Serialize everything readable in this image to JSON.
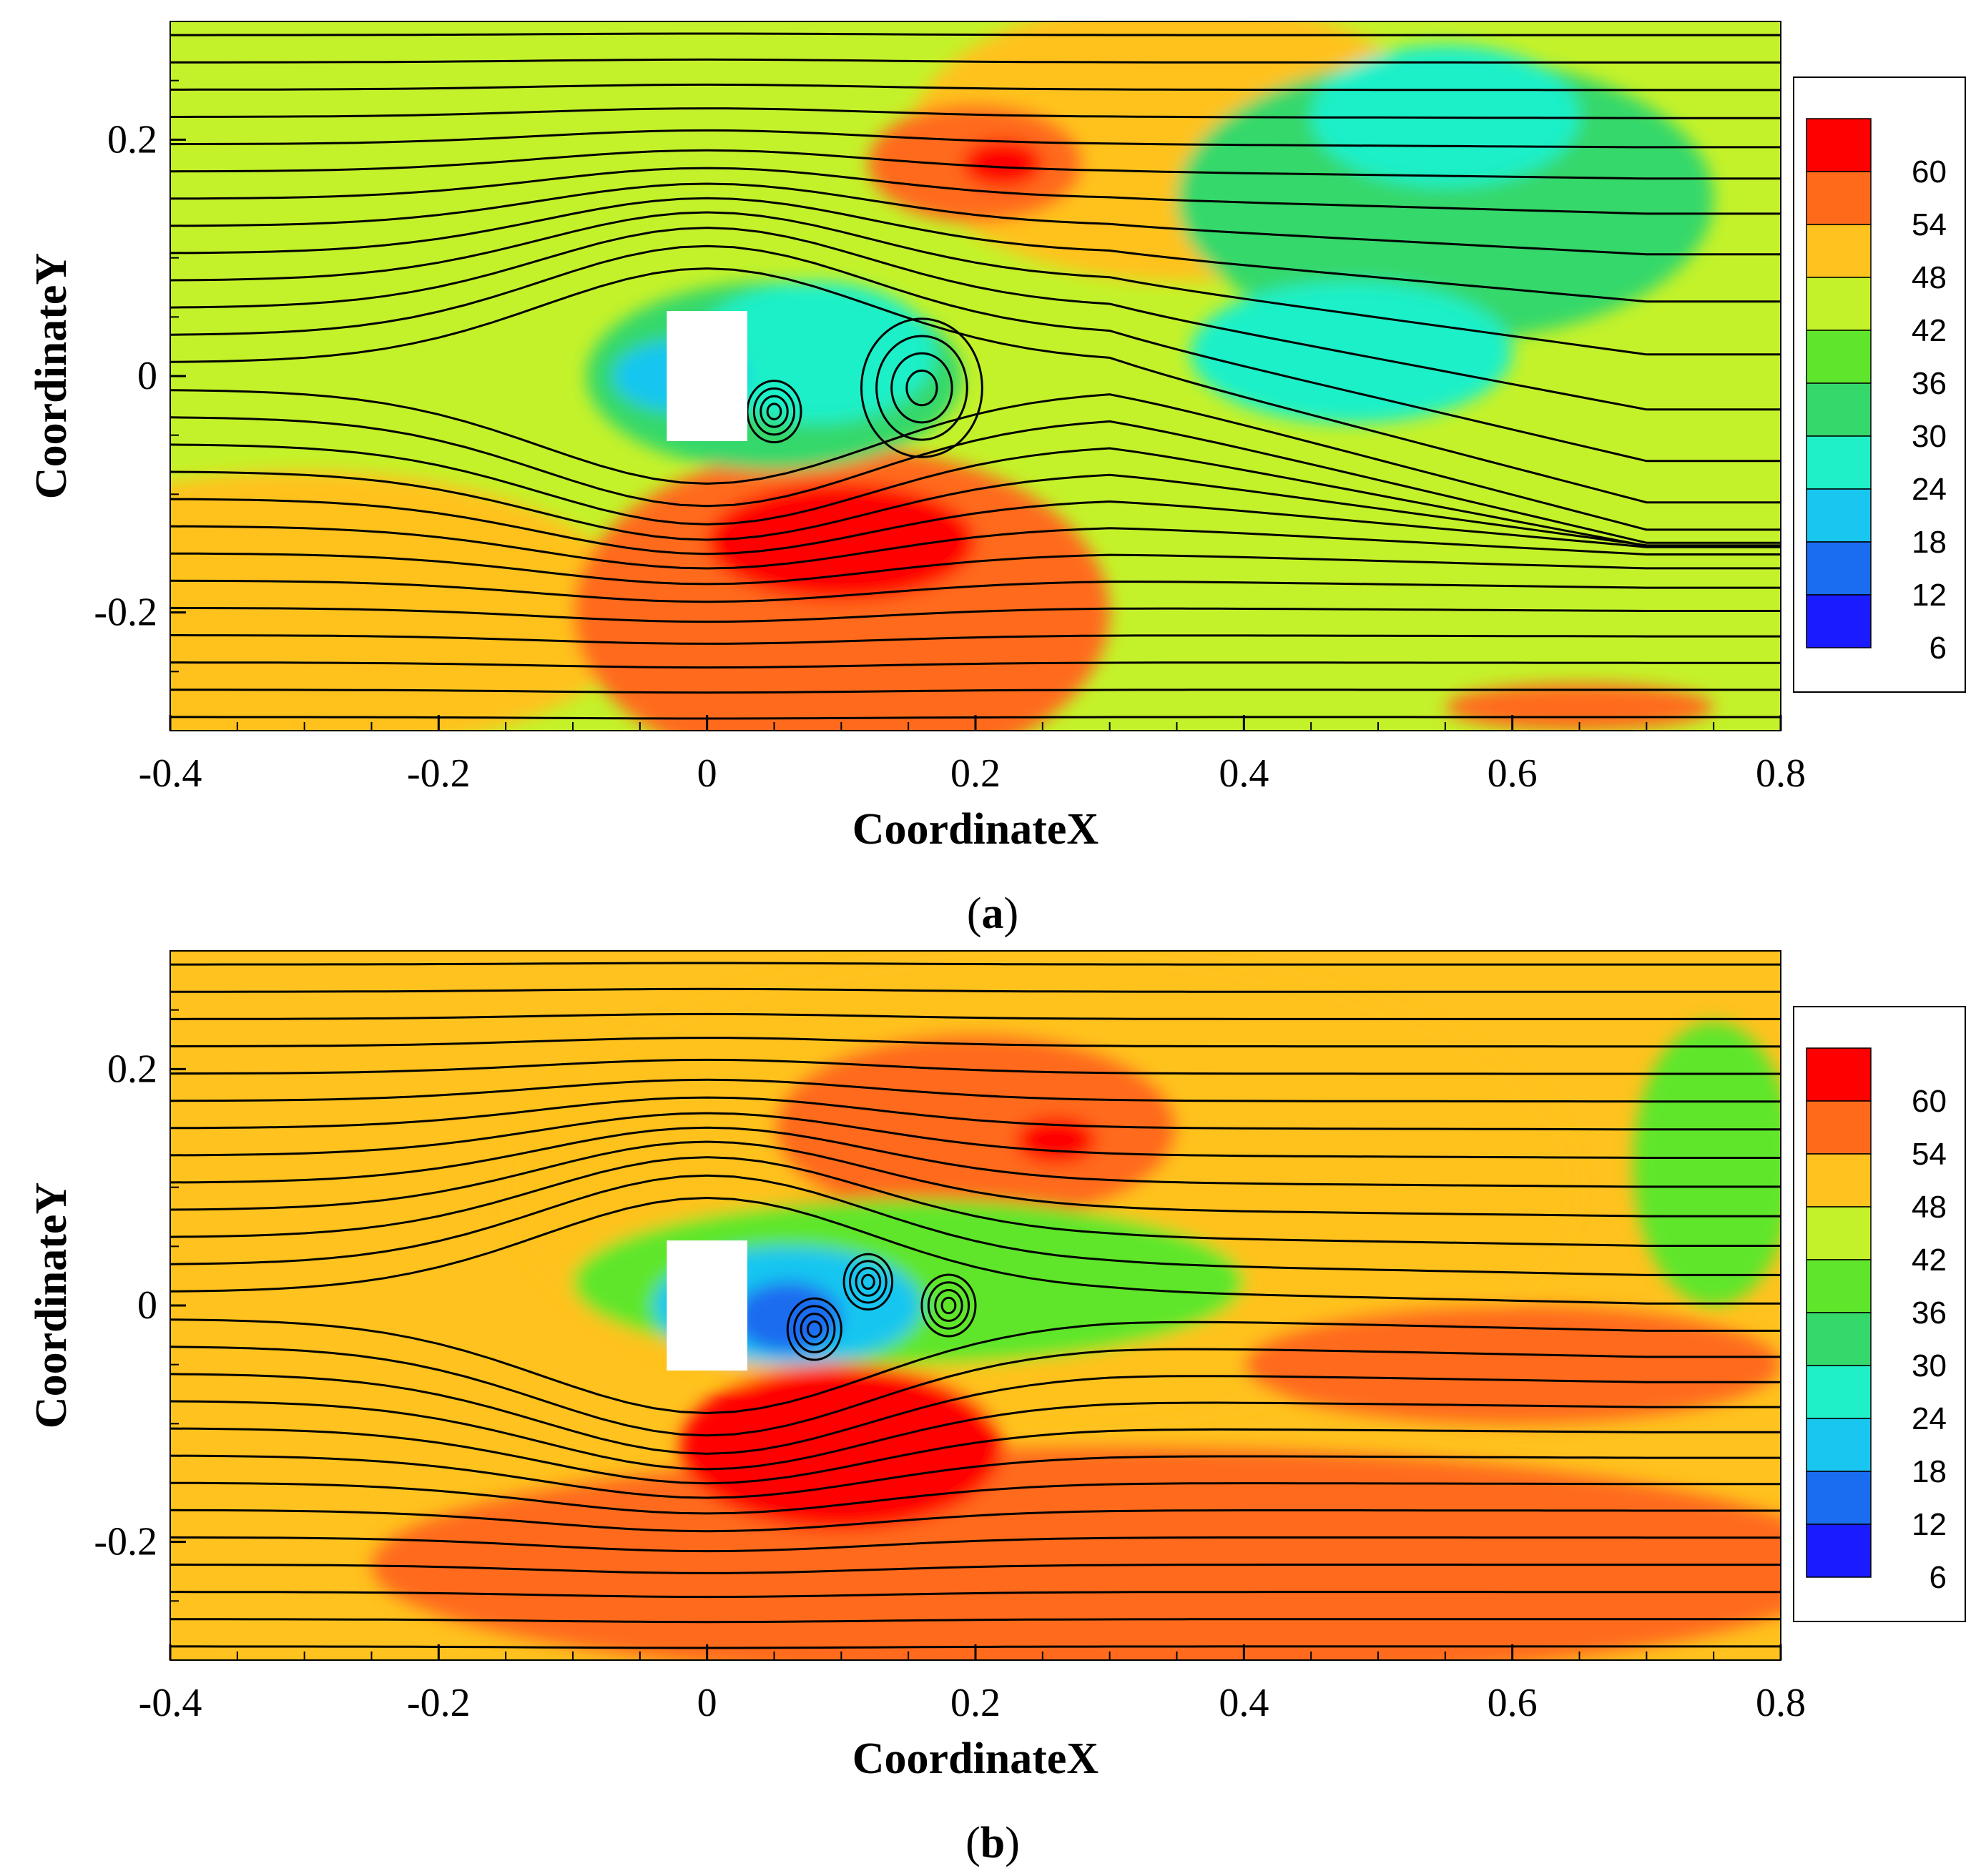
{
  "chart_data": [
    {
      "type": "heatmap",
      "panel_caption_open": "(",
      "panel_caption_letter": "a",
      "panel_caption_close": ")",
      "xlabel": "CoordinateX",
      "ylabel": "CoordinateY",
      "xlim": [
        -0.4,
        0.8
      ],
      "ylim": [
        -0.3,
        0.3
      ],
      "x_ticks": [
        -0.4,
        -0.2,
        0,
        0.2,
        0.4,
        0.6,
        0.8
      ],
      "x_tick_labels": [
        "-0.4",
        "-0.2",
        "0",
        "0.2",
        "0.4",
        "0.6",
        "0.8"
      ],
      "y_ticks": [
        -0.2,
        0,
        0.2
      ],
      "y_tick_labels": [
        "-0.2",
        "0",
        "0.2"
      ],
      "legend_levels": [
        "60",
        "54",
        "48",
        "42",
        "36",
        "30",
        "24",
        "18",
        "12",
        "6"
      ],
      "legend_colors": [
        "#ff0000",
        "#ff6a1a",
        "#ffc21e",
        "#c4f22a",
        "#5fe62c",
        "#35d86b",
        "#1ff0c8",
        "#18c6f0",
        "#1a6cf0",
        "#1b1bff"
      ],
      "background_level": 42,
      "obstacle": {
        "x0": -0.03,
        "x1": 0.03,
        "y0": -0.055,
        "y1": 0.055
      },
      "regions": [
        {
          "x": 0.35,
          "y": 0.2,
          "rx": 0.2,
          "ry": 0.12,
          "level": 48
        },
        {
          "x": 0.2,
          "y": 0.18,
          "rx": 0.08,
          "ry": 0.05,
          "level": 54
        },
        {
          "x": 0.22,
          "y": 0.18,
          "rx": 0.03,
          "ry": 0.02,
          "level": 60
        },
        {
          "x": -0.3,
          "y": -0.2,
          "rx": 0.25,
          "ry": 0.12,
          "level": 48
        },
        {
          "x": 0.1,
          "y": -0.2,
          "rx": 0.2,
          "ry": 0.14,
          "level": 54
        },
        {
          "x": 0.1,
          "y": -0.14,
          "rx": 0.1,
          "ry": 0.05,
          "level": 60
        },
        {
          "x": 0.65,
          "y": -0.28,
          "rx": 0.1,
          "ry": 0.02,
          "level": 54
        },
        {
          "x": 0.55,
          "y": 0.15,
          "rx": 0.2,
          "ry": 0.12,
          "level": 30
        },
        {
          "x": 0.55,
          "y": 0.22,
          "rx": 0.1,
          "ry": 0.06,
          "level": 24
        },
        {
          "x": 0.48,
          "y": 0.02,
          "rx": 0.12,
          "ry": 0.06,
          "level": 24
        },
        {
          "x": 0.05,
          "y": 0.0,
          "rx": 0.14,
          "ry": 0.08,
          "level": 30
        },
        {
          "x": 0.08,
          "y": 0.02,
          "rx": 0.09,
          "ry": 0.06,
          "level": 24
        },
        {
          "x": -0.02,
          "y": 0.0,
          "rx": 0.05,
          "ry": 0.03,
          "level": 18
        }
      ]
    },
    {
      "type": "heatmap",
      "panel_caption_open": "(",
      "panel_caption_letter": "b",
      "panel_caption_close": ")",
      "xlabel": "CoordinateX",
      "ylabel": "CoordinateY",
      "xlim": [
        -0.4,
        0.8
      ],
      "ylim": [
        -0.3,
        0.3
      ],
      "x_ticks": [
        -0.4,
        -0.2,
        0,
        0.2,
        0.4,
        0.6,
        0.8
      ],
      "x_tick_labels": [
        "-0.4",
        "-0.2",
        "0",
        "0.2",
        "0.4",
        "0.6",
        "0.8"
      ],
      "y_ticks": [
        -0.2,
        0,
        0.2
      ],
      "y_tick_labels": [
        "-0.2",
        "0",
        "0.2"
      ],
      "legend_levels": [
        "60",
        "54",
        "48",
        "42",
        "36",
        "30",
        "24",
        "18",
        "12",
        "6"
      ],
      "legend_colors": [
        "#ff0000",
        "#ff6a1a",
        "#ffc21e",
        "#c4f22a",
        "#5fe62c",
        "#35d86b",
        "#1ff0c8",
        "#18c6f0",
        "#1a6cf0",
        "#1b1bff"
      ],
      "background_level": 48,
      "obstacle": {
        "x0": -0.03,
        "x1": 0.03,
        "y0": -0.055,
        "y1": 0.055
      },
      "regions": [
        {
          "x": 0.25,
          "y": 0.1,
          "rx": 0.4,
          "ry": 0.2,
          "level": 48
        },
        {
          "x": 0.2,
          "y": 0.15,
          "rx": 0.15,
          "ry": 0.08,
          "level": 54
        },
        {
          "x": 0.26,
          "y": 0.14,
          "rx": 0.03,
          "ry": 0.02,
          "level": 60
        },
        {
          "x": 0.3,
          "y": -0.22,
          "rx": 0.55,
          "ry": 0.1,
          "level": 54
        },
        {
          "x": 0.6,
          "y": -0.05,
          "rx": 0.2,
          "ry": 0.05,
          "level": 54
        },
        {
          "x": 0.1,
          "y": -0.12,
          "rx": 0.12,
          "ry": 0.07,
          "level": 60
        },
        {
          "x": 0.1,
          "y": 0.05,
          "rx": 0.1,
          "ry": 0.04,
          "level": 60
        },
        {
          "x": 0.75,
          "y": 0.12,
          "rx": 0.06,
          "ry": 0.12,
          "level": 36
        },
        {
          "x": 0.15,
          "y": 0.02,
          "rx": 0.25,
          "ry": 0.07,
          "level": 36
        },
        {
          "x": 0.06,
          "y": 0.0,
          "rx": 0.1,
          "ry": 0.05,
          "level": 18
        },
        {
          "x": 0.06,
          "y": -0.01,
          "rx": 0.04,
          "ry": 0.03,
          "level": 12
        }
      ]
    }
  ]
}
